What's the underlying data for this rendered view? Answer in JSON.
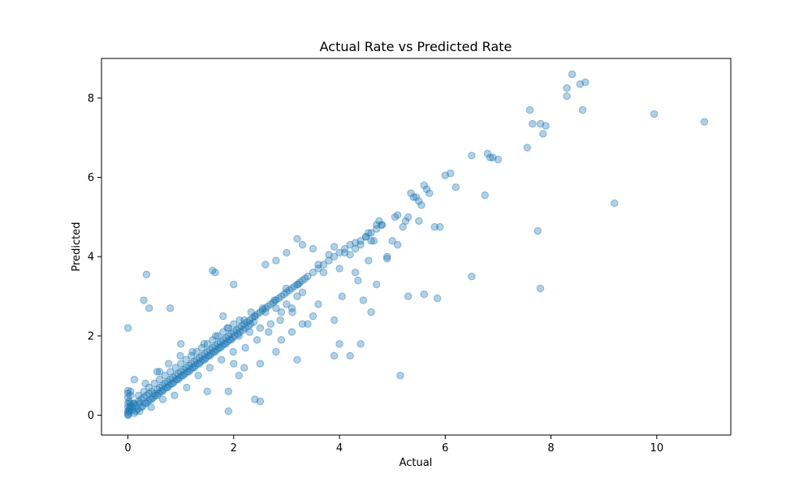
{
  "chart_data": {
    "type": "scatter",
    "title": "Actual Rate vs Predicted Rate",
    "xlabel": "Actual",
    "ylabel": "Predicted",
    "xlim": [
      -0.5,
      11.4
    ],
    "ylim": [
      -0.5,
      9.0
    ],
    "xticks": [
      0,
      2,
      4,
      6,
      8,
      10
    ],
    "yticks": [
      0,
      2,
      4,
      6,
      8
    ],
    "xtick_labels": [
      "0",
      "2",
      "4",
      "6",
      "8",
      "10"
    ],
    "ytick_labels": [
      "0",
      "2",
      "4",
      "6",
      "8"
    ],
    "grid": false,
    "marker_color": "#1f77b4",
    "marker_alpha": 0.35,
    "series": [
      {
        "name": "",
        "x": [
          0,
          0,
          0,
          0,
          0,
          0,
          0,
          0,
          0.01,
          0.02,
          0.02,
          0.03,
          0.04,
          0.05,
          0.06,
          0.05,
          0.08,
          0.1,
          0.12,
          0.12,
          0.15,
          0.18,
          0.2,
          0.22,
          0.25,
          0.28,
          0.3,
          0.32,
          0.35,
          0.38,
          0.4,
          0.42,
          0.45,
          0.48,
          0.5,
          0.52,
          0.55,
          0.58,
          0.6,
          0.62,
          0.65,
          0.68,
          0.7,
          0.72,
          0.75,
          0.78,
          0.8,
          0.82,
          0.85,
          0.88,
          0.9,
          0.92,
          0.95,
          0.98,
          1.0,
          1.02,
          1.05,
          1.08,
          1.1,
          1.12,
          1.15,
          1.18,
          1.2,
          1.22,
          1.25,
          1.28,
          1.3,
          1.32,
          1.35,
          1.38,
          1.4,
          1.42,
          1.45,
          1.48,
          1.5,
          1.52,
          1.55,
          1.58,
          1.6,
          1.62,
          1.65,
          1.68,
          1.7,
          1.72,
          1.75,
          1.78,
          1.8,
          1.82,
          1.85,
          1.88,
          1.9,
          1.92,
          1.95,
          1.98,
          2.0,
          2.02,
          2.05,
          2.08,
          2.1,
          2.12,
          2.15,
          2.18,
          2.2,
          2.22,
          2.25,
          2.28,
          2.3,
          2.32,
          2.35,
          2.38,
          2.4,
          2.45,
          2.5,
          2.55,
          2.6,
          2.65,
          2.7,
          2.75,
          2.8,
          2.85,
          2.9,
          2.95,
          3.0,
          3.05,
          3.1,
          3.15,
          3.2,
          3.25,
          3.3,
          3.35,
          3.4,
          3.5,
          3.6,
          3.7,
          3.8,
          3.9,
          4.0,
          4.1,
          4.2,
          4.3,
          4.4,
          4.5,
          4.6,
          4.7,
          4.8,
          0.1,
          0.15,
          0.2,
          0.25,
          0.3,
          0.35,
          0.4,
          0.45,
          0.5,
          0.55,
          0.6,
          0.65,
          0.7,
          0.75,
          0.8,
          0.85,
          0.9,
          0.95,
          1.0,
          1.05,
          1.1,
          1.15,
          1.2,
          1.25,
          1.3,
          1.35,
          1.4,
          1.45,
          1.5,
          1.55,
          1.6,
          1.65,
          1.7,
          1.75,
          1.8,
          1.85,
          1.9,
          1.95,
          2.0,
          2.1,
          2.2,
          2.3,
          2.4,
          2.5,
          2.6,
          2.7,
          2.8,
          2.9,
          3.0,
          3.1,
          3.2,
          3.3,
          0.05,
          0.12,
          0.22,
          0.33,
          0.44,
          0.55,
          0.66,
          0.77,
          0.88,
          0.99,
          1.11,
          1.22,
          1.33,
          1.44,
          1.55,
          1.66,
          1.77,
          1.88,
          1.99,
          2.11,
          2.22,
          2.33,
          2.44,
          2.55,
          2.66,
          2.77,
          2.88,
          2.99,
          3.11,
          3.22,
          0.0,
          0.3,
          0.35,
          0.4,
          0.8,
          0.6,
          1.6,
          1.65,
          1.9,
          1.8,
          2.0,
          2.5,
          2.6,
          2.8,
          3.0,
          3.2,
          3.3,
          3.5,
          3.6,
          3.7,
          3.8,
          3.9,
          4.0,
          4.1,
          4.2,
          4.3,
          4.35,
          4.4,
          4.5,
          4.55,
          4.6,
          4.65,
          4.7,
          4.75,
          4.8,
          4.9,
          5.0,
          5.05,
          5.1,
          5.2,
          5.25,
          5.3,
          5.35,
          5.4,
          5.45,
          5.5,
          5.55,
          5.6,
          5.65,
          5.7,
          5.8,
          5.9,
          6.0,
          6.1,
          6.2,
          6.5,
          6.75,
          6.8,
          6.85,
          6.9,
          7.0,
          7.55,
          7.6,
          7.65,
          7.8,
          7.85,
          7.9,
          8.3,
          8.3,
          8.4,
          8.55,
          8.6,
          8.65,
          9.95,
          10.9,
          1.0,
          1.5,
          2.0,
          2.4,
          2.8,
          3.2,
          3.4,
          3.9,
          4.0,
          4.2,
          4.4,
          4.6,
          5.15,
          5.3,
          5.6,
          5.85,
          6.5,
          7.75,
          7.8,
          9.2,
          1.9,
          2.1,
          2.2,
          2.5,
          2.9,
          3.1,
          3.3,
          3.5,
          3.6,
          3.9,
          4.05,
          4.3,
          4.45,
          4.55,
          4.7,
          4.9,
          5.1,
          5.5
        ],
        "y": [
          0,
          0.05,
          0.1,
          0.2,
          0.3,
          0.45,
          0.55,
          0.62,
          0.02,
          0.15,
          0.35,
          0.1,
          0.2,
          0.3,
          0.25,
          0.5,
          0.12,
          0.2,
          0.05,
          0.3,
          0.25,
          0.15,
          0.35,
          0.3,
          0.4,
          0.22,
          0.45,
          0.3,
          0.5,
          0.35,
          0.55,
          0.4,
          0.6,
          0.45,
          0.55,
          0.5,
          0.65,
          0.55,
          0.7,
          0.6,
          0.75,
          0.65,
          0.8,
          0.7,
          0.85,
          0.75,
          0.9,
          0.8,
          0.95,
          0.85,
          1.0,
          0.9,
          1.05,
          0.95,
          1.1,
          1.0,
          1.15,
          1.05,
          1.2,
          1.1,
          1.25,
          1.15,
          1.3,
          1.2,
          1.35,
          1.25,
          1.4,
          1.3,
          1.45,
          1.35,
          1.5,
          1.4,
          1.55,
          1.45,
          1.6,
          1.5,
          1.65,
          1.55,
          1.7,
          1.6,
          1.75,
          1.65,
          1.8,
          1.7,
          1.85,
          1.75,
          1.9,
          1.8,
          1.95,
          1.85,
          2.0,
          1.9,
          2.05,
          1.95,
          2.1,
          2.0,
          2.15,
          2.05,
          2.2,
          2.1,
          2.25,
          2.15,
          2.3,
          2.2,
          2.35,
          2.25,
          2.4,
          2.3,
          2.45,
          2.35,
          2.5,
          2.55,
          2.6,
          2.65,
          2.7,
          2.75,
          2.8,
          2.85,
          2.9,
          2.95,
          3.0,
          3.05,
          3.1,
          3.15,
          3.2,
          3.25,
          3.3,
          3.35,
          3.4,
          3.45,
          3.5,
          3.6,
          3.7,
          3.8,
          3.9,
          4.0,
          4.1,
          4.2,
          4.3,
          4.35,
          4.4,
          4.5,
          4.6,
          4.7,
          4.8,
          0.3,
          0.1,
          0.5,
          0.2,
          0.6,
          0.3,
          0.7,
          0.4,
          0.8,
          0.5,
          0.9,
          0.6,
          1.0,
          0.7,
          1.1,
          0.8,
          1.2,
          0.9,
          1.3,
          1.0,
          1.4,
          1.1,
          1.5,
          1.2,
          1.6,
          1.3,
          1.7,
          1.4,
          1.8,
          1.5,
          1.9,
          1.6,
          2.0,
          1.7,
          2.1,
          1.8,
          2.2,
          1.9,
          2.3,
          2.0,
          2.4,
          2.1,
          2.5,
          2.2,
          2.6,
          2.3,
          2.7,
          2.6,
          2.8,
          2.7,
          3.0,
          3.1,
          0.6,
          0.9,
          0.1,
          0.8,
          0.2,
          1.1,
          0.4,
          1.3,
          0.5,
          1.5,
          0.7,
          1.6,
          1.0,
          1.8,
          1.2,
          2.0,
          1.4,
          2.2,
          1.6,
          2.4,
          1.7,
          2.6,
          1.9,
          2.7,
          2.1,
          2.9,
          2.4,
          3.2,
          2.6,
          3.3,
          2.2,
          2.9,
          3.55,
          2.7,
          2.7,
          1.1,
          3.65,
          3.6,
          0.1,
          2.5,
          3.3,
          0.35,
          3.8,
          3.9,
          4.1,
          4.45,
          4.3,
          4.2,
          3.8,
          3.6,
          4.05,
          4.25,
          3.7,
          4.1,
          4.05,
          4.2,
          3.4,
          4.3,
          4.5,
          4.6,
          4.4,
          4.4,
          4.8,
          4.9,
          4.8,
          3.95,
          4.4,
          5.0,
          5.05,
          4.75,
          4.9,
          5.0,
          5.6,
          5.5,
          5.5,
          5.4,
          5.3,
          5.8,
          5.7,
          5.6,
          4.75,
          4.75,
          6.05,
          6.1,
          5.75,
          6.55,
          5.55,
          6.6,
          6.5,
          6.5,
          6.45,
          6.75,
          7.7,
          7.35,
          7.35,
          7.1,
          7.3,
          8.05,
          8.25,
          8.6,
          8.35,
          7.7,
          8.4,
          7.6,
          7.4,
          1.8,
          0.6,
          1.3,
          0.4,
          1.6,
          1.4,
          2.3,
          1.5,
          1.8,
          1.5,
          1.8,
          2.6,
          1.0,
          3.0,
          3.05,
          2.95,
          3.5,
          4.65,
          3.2,
          5.35,
          0.6,
          1.0,
          1.2,
          1.3,
          1.9,
          2.1,
          2.3,
          2.5,
          2.8,
          2.4,
          3.0,
          3.6,
          2.9,
          3.9,
          3.3,
          4.0,
          4.3,
          4.9
        ]
      }
    ]
  }
}
